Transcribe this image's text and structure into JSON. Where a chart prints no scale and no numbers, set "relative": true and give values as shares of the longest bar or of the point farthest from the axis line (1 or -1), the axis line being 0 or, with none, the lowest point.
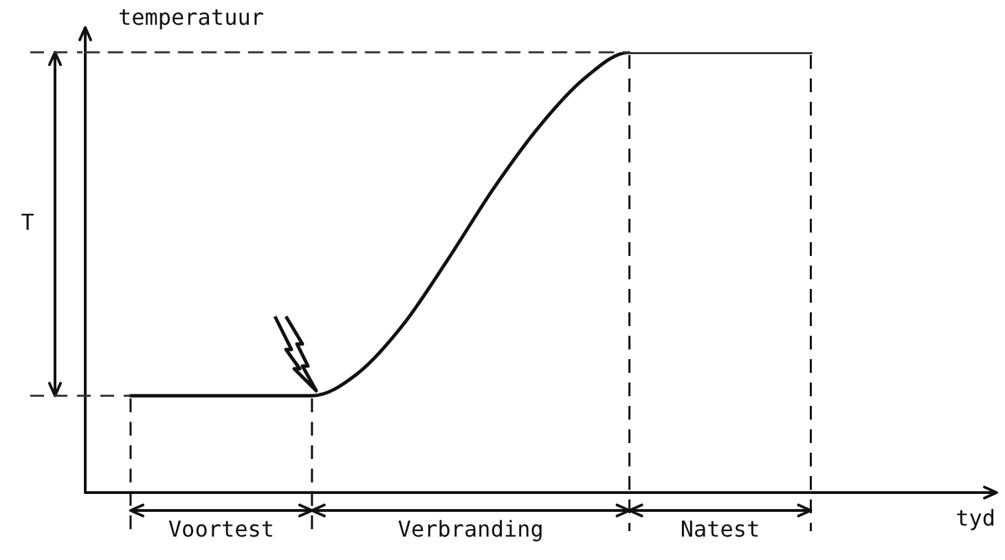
{
  "chart_data": {
    "type": "line",
    "relative": true,
    "ylabel": "temperatuur",
    "categories": [
      null,
      null,
      null,
      null,
      null,
      null,
      null,
      null,
      null,
      null,
      null,
      null,
      null,
      null,
      null,
      null
    ],
    "values": [
      0.22,
      0.22,
      0.22,
      0.22,
      0.22,
      0.27,
      0.38,
      0.53,
      0.69,
      0.83,
      0.94,
      1,
      1,
      1,
      1,
      1
    ],
    "color": "#111111",
    "annotations": [
      "T",
      "Voortest",
      "Verbranding",
      "Natest",
      "tyd"
    ],
    "ref_lines": [
      {
        "axis": "y",
        "value": 1,
        "line_style": "dashed",
        "color": "#333333"
      }
    ]
  }
}
